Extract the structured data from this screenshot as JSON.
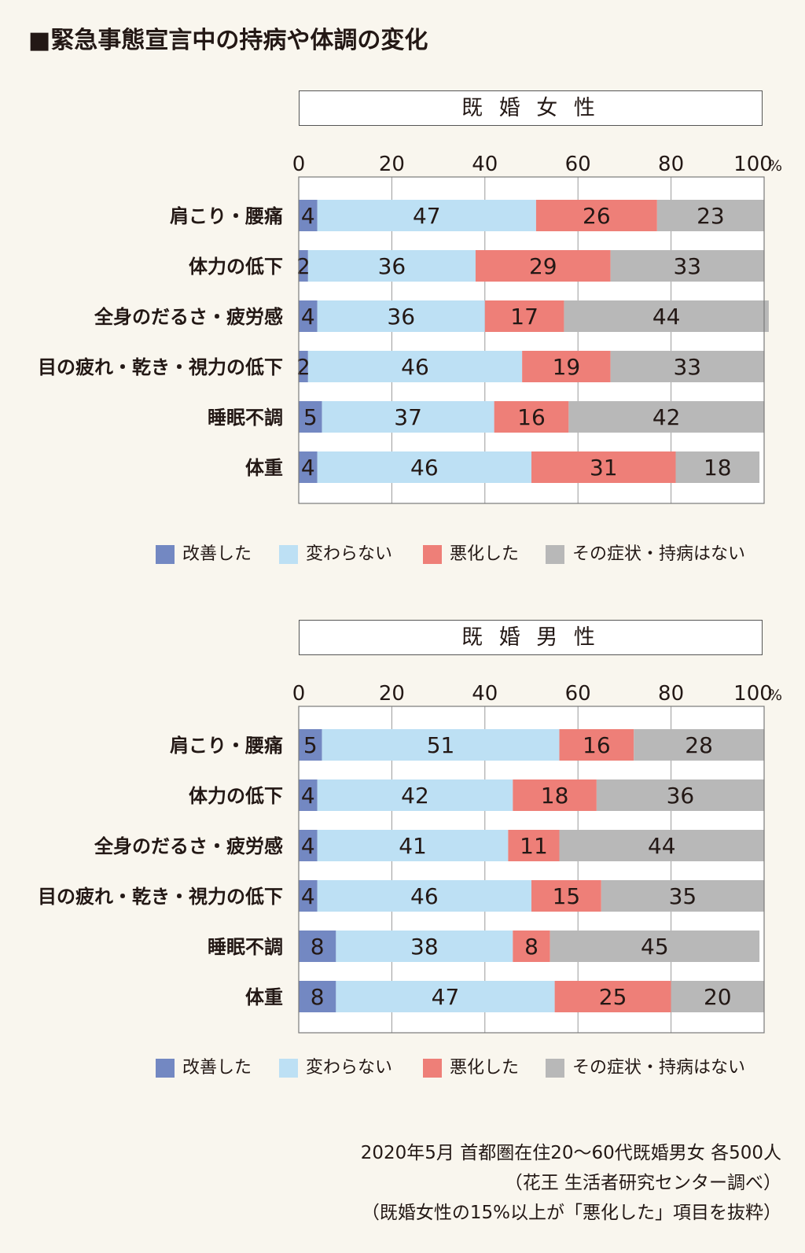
{
  "title": "■緊急事態宣言中の持病や体調の変化",
  "legend_labels": [
    "改善した",
    "変わらない",
    "悪化した",
    "その症状・持病はない"
  ],
  "colors": [
    "#7388c2",
    "#bde0f4",
    "#ee7f78",
    "#b8b8b8"
  ],
  "chart_data": [
    {
      "type": "bar",
      "orientation": "horizontal",
      "stacked": true,
      "title": "既 婚 女 性",
      "axis": {
        "ticks": [
          "0",
          "20",
          "40",
          "60",
          "80",
          "100"
        ],
        "unit": "%",
        "range": [
          0,
          100
        ],
        "grid": true
      },
      "legend_position": "bottom",
      "categories": [
        "肩こり・腰痛",
        "体力の低下",
        "全身のだるさ・疲労感",
        "目の疲れ・乾き・視力の低下",
        "睡眠不調",
        "体重"
      ],
      "series": [
        {
          "name": "改善した",
          "values": [
            4,
            2,
            4,
            2,
            5,
            4
          ]
        },
        {
          "name": "変わらない",
          "values": [
            47,
            36,
            36,
            46,
            37,
            46
          ]
        },
        {
          "name": "悪化した",
          "values": [
            26,
            29,
            17,
            19,
            16,
            31
          ]
        },
        {
          "name": "その症状・持病はない",
          "values": [
            23,
            33,
            44,
            33,
            42,
            18
          ]
        }
      ]
    },
    {
      "type": "bar",
      "orientation": "horizontal",
      "stacked": true,
      "title": "既 婚 男 性",
      "axis": {
        "ticks": [
          "0",
          "20",
          "40",
          "60",
          "80",
          "100"
        ],
        "unit": "%",
        "range": [
          0,
          100
        ],
        "grid": true
      },
      "legend_position": "bottom",
      "categories": [
        "肩こり・腰痛",
        "体力の低下",
        "全身のだるさ・疲労感",
        "目の疲れ・乾き・視力の低下",
        "睡眠不調",
        "体重"
      ],
      "series": [
        {
          "name": "改善した",
          "values": [
            5,
            4,
            4,
            4,
            8,
            8
          ]
        },
        {
          "name": "変わらない",
          "values": [
            51,
            42,
            41,
            46,
            38,
            47
          ]
        },
        {
          "name": "悪化した",
          "values": [
            16,
            18,
            11,
            15,
            8,
            25
          ]
        },
        {
          "name": "その症状・持病はない",
          "values": [
            28,
            36,
            44,
            35,
            45,
            20
          ]
        }
      ]
    }
  ],
  "footnote": [
    "2020年5月 首都圏在住20〜60代既婚男女 各500人",
    "（花王 生活者研究センター調べ）",
    "（既婚女性の15%以上が「悪化した」項目を抜粋）"
  ]
}
